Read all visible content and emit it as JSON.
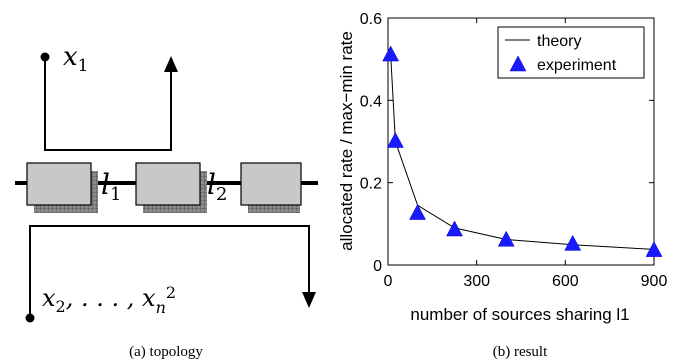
{
  "topology": {
    "source_top": "x",
    "source_top_sub": "1",
    "source_bottom": "x",
    "source_bottom_sub": "2",
    "source_bottom_mid": ", . . . , x",
    "source_bottom_sub_n": "n",
    "source_bottom_sup": "2",
    "link1": "l",
    "link1_sub": "1",
    "link2": "l",
    "link2_sub": "2",
    "caption": "(a) topology"
  },
  "result": {
    "caption": "(b) result"
  },
  "chart_data": {
    "type": "line",
    "xlabel": "number of sources sharing l1",
    "ylabel": "allocated rate / max−min rate",
    "xlim": [
      0,
      900
    ],
    "ylim": [
      0,
      0.6
    ],
    "x_ticks": [
      0,
      300,
      600,
      900
    ],
    "y_ticks": [
      0,
      0.2,
      0.4,
      0.6
    ],
    "x_tick_labels": [
      "0",
      "300",
      "600",
      "900"
    ],
    "y_tick_labels": [
      "0",
      "0.2",
      "0.4",
      "0.6"
    ],
    "legend_position": "top-right",
    "series": [
      {
        "name": "theory",
        "kind": "line",
        "color": "#000000",
        "x": [
          9,
          25,
          100,
          225,
          400,
          625,
          900
        ],
        "y": [
          0.51,
          0.3,
          0.145,
          0.09,
          0.062,
          0.049,
          0.038
        ]
      },
      {
        "name": "experiment",
        "kind": "marker-triangle",
        "color": "#1a1aff",
        "x": [
          9,
          25,
          100,
          225,
          400,
          625,
          900
        ],
        "y": [
          0.51,
          0.3,
          0.125,
          0.085,
          0.06,
          0.05,
          0.035
        ]
      }
    ]
  }
}
